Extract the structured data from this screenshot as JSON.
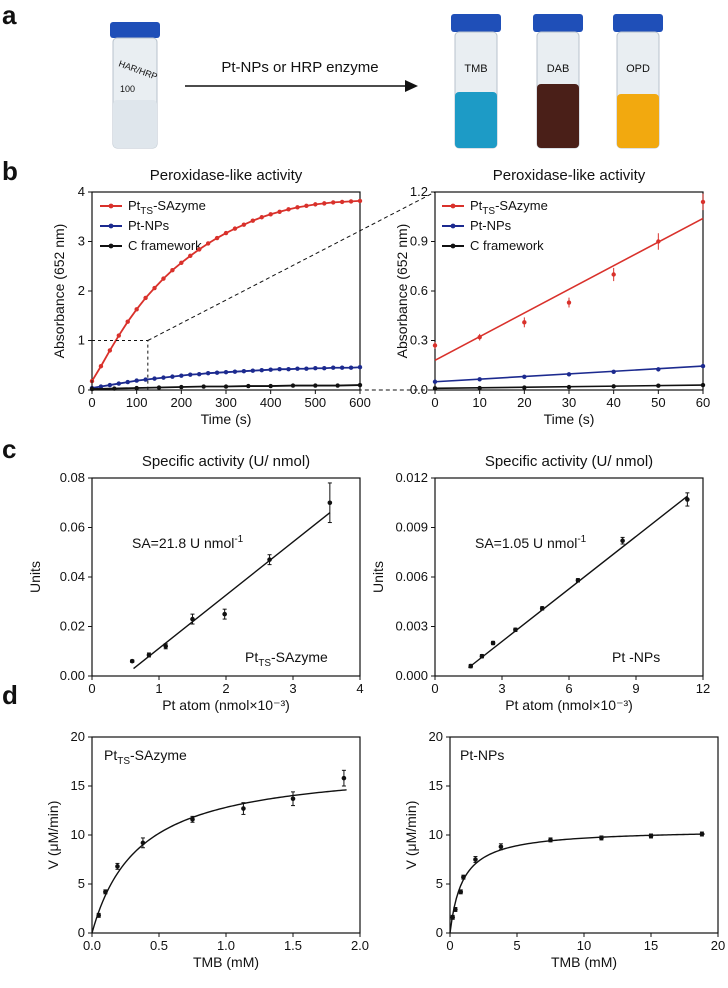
{
  "panel_a": {
    "letter": "a",
    "arrow_label": "Pt-NPs or HRP enzyme",
    "left_vial_marks": [
      "HAR/HRP",
      "100"
    ],
    "right_vial_labels": [
      "TMB",
      "DAB",
      "OPD"
    ],
    "vial_colors": {
      "clear": "#e9eef2",
      "tmb": "#1d9bc6",
      "dab": "#4a1f18",
      "opd": "#f2a90f",
      "cap": "#1f4fb8"
    }
  },
  "panel_b": {
    "letter": "b"
  },
  "panel_c": {
    "letter": "c"
  },
  "panel_d": {
    "letter": "d"
  },
  "colors": {
    "red": "#d9312b",
    "blue": "#1c2a8f",
    "black": "#111111"
  },
  "chart_data": [
    {
      "id": "b_left",
      "type": "line",
      "title": "Peroxidase-like  activity",
      "xlabel": "Time (s)",
      "ylabel": "Absorbance (652 nm)",
      "xlim": [
        0,
        600
      ],
      "ylim": [
        0,
        4
      ],
      "xticks": [
        0,
        100,
        200,
        300,
        400,
        500,
        600
      ],
      "yticks": [
        0,
        1,
        2,
        3,
        4
      ],
      "legend": [
        {
          "main": "Pt",
          "sub": "TS",
          "rest": "-SAzyme",
          "color": "#d9312b"
        },
        {
          "main": "Pt-NPs",
          "sub": "",
          "rest": "",
          "color": "#1c2a8f"
        },
        {
          "main": "C framework",
          "sub": "",
          "rest": "",
          "color": "#111111"
        }
      ],
      "series": [
        {
          "name": "PtTS-SAzyme",
          "color": "#d9312b",
          "x": [
            0,
            20,
            40,
            60,
            80,
            100,
            120,
            140,
            160,
            180,
            200,
            220,
            240,
            260,
            280,
            300,
            320,
            340,
            360,
            380,
            400,
            420,
            440,
            460,
            480,
            500,
            520,
            540,
            560,
            580,
            600
          ],
          "y": [
            0.18,
            0.48,
            0.8,
            1.1,
            1.38,
            1.63,
            1.86,
            2.06,
            2.25,
            2.42,
            2.57,
            2.71,
            2.84,
            2.96,
            3.07,
            3.17,
            3.26,
            3.34,
            3.42,
            3.49,
            3.55,
            3.6,
            3.65,
            3.69,
            3.72,
            3.75,
            3.77,
            3.79,
            3.8,
            3.81,
            3.82
          ]
        },
        {
          "name": "Pt-NPs",
          "color": "#1c2a8f",
          "x": [
            0,
            20,
            40,
            60,
            80,
            100,
            120,
            140,
            160,
            180,
            200,
            220,
            240,
            260,
            280,
            300,
            320,
            340,
            360,
            380,
            400,
            420,
            440,
            460,
            480,
            500,
            520,
            540,
            560,
            580,
            600
          ],
          "y": [
            0.04,
            0.07,
            0.1,
            0.13,
            0.16,
            0.19,
            0.21,
            0.23,
            0.25,
            0.27,
            0.29,
            0.31,
            0.32,
            0.34,
            0.35,
            0.36,
            0.37,
            0.38,
            0.39,
            0.4,
            0.41,
            0.42,
            0.42,
            0.43,
            0.43,
            0.44,
            0.44,
            0.45,
            0.45,
            0.45,
            0.46
          ]
        },
        {
          "name": "C framework",
          "color": "#111111",
          "x": [
            0,
            50,
            100,
            150,
            200,
            250,
            300,
            350,
            400,
            450,
            500,
            550,
            600
          ],
          "y": [
            0.02,
            0.03,
            0.04,
            0.05,
            0.06,
            0.07,
            0.07,
            0.08,
            0.08,
            0.09,
            0.09,
            0.09,
            0.1
          ]
        }
      ],
      "inset_box": {
        "x": [
          0,
          125
        ],
        "y": [
          0,
          1
        ]
      }
    },
    {
      "id": "b_right",
      "type": "line",
      "title": "Peroxidase-like  activity",
      "xlabel": "Time (s)",
      "ylabel": "Absorbance (652 nm)",
      "xlim": [
        0,
        60
      ],
      "ylim": [
        0,
        1.2
      ],
      "xticks": [
        0,
        10,
        20,
        30,
        40,
        50,
        60
      ],
      "yticks": [
        0.0,
        0.3,
        0.6,
        0.9,
        1.2
      ],
      "ytick_labels": [
        "0.0",
        "0.3",
        "0.6",
        "0.9",
        "1.2"
      ],
      "legend": [
        {
          "main": "Pt",
          "sub": "TS",
          "rest": "-SAzyme",
          "color": "#d9312b"
        },
        {
          "main": "Pt-NPs",
          "sub": "",
          "rest": "",
          "color": "#1c2a8f"
        },
        {
          "main": "C framework",
          "sub": "",
          "rest": "",
          "color": "#111111"
        }
      ],
      "series": [
        {
          "name": "PtTS-SAzyme",
          "color": "#d9312b",
          "x": [
            0,
            10,
            20,
            30,
            40,
            50,
            60
          ],
          "y": [
            0.27,
            0.32,
            0.41,
            0.53,
            0.7,
            0.9,
            1.14
          ],
          "err": [
            0.02,
            0.02,
            0.03,
            0.03,
            0.04,
            0.05,
            0.05
          ],
          "fit": [
            [
              0,
              0.18
            ],
            [
              60,
              1.04
            ]
          ]
        },
        {
          "name": "Pt-NPs",
          "color": "#1c2a8f",
          "x": [
            0,
            10,
            20,
            30,
            40,
            50,
            60
          ],
          "y": [
            0.05,
            0.065,
            0.08,
            0.095,
            0.11,
            0.125,
            0.145
          ],
          "fit": [
            [
              0,
              0.05
            ],
            [
              60,
              0.145
            ]
          ]
        },
        {
          "name": "C framework",
          "color": "#111111",
          "x": [
            0,
            10,
            20,
            30,
            40,
            50,
            60
          ],
          "y": [
            0.01,
            0.012,
            0.015,
            0.018,
            0.022,
            0.026,
            0.03
          ],
          "fit": [
            [
              0,
              0.01
            ],
            [
              60,
              0.03
            ]
          ]
        }
      ]
    },
    {
      "id": "c_left",
      "type": "scatter",
      "title": "Specific activity (U/ nmol)",
      "xlabel": "Pt atom (nmol×10⁻³)",
      "ylabel": "Units",
      "xlim": [
        0,
        4
      ],
      "ylim": [
        0,
        0.08
      ],
      "xticks": [
        0,
        1,
        2,
        3,
        4
      ],
      "yticks": [
        0.0,
        0.02,
        0.04,
        0.06,
        0.08
      ],
      "ytick_labels": [
        "0.00",
        "0.02",
        "0.04",
        "0.06",
        "0.08"
      ],
      "annotation": {
        "main": "SA=21.8 U nmol",
        "sup": "-1"
      },
      "label": {
        "main": "Pt",
        "sub": "TS",
        "rest": "-SAzyme"
      },
      "x": [
        0.6,
        0.85,
        1.1,
        1.5,
        1.98,
        2.65,
        3.55
      ],
      "y": [
        0.006,
        0.0085,
        0.012,
        0.023,
        0.025,
        0.047,
        0.07
      ],
      "err": [
        0.0005,
        0.0008,
        0.001,
        0.002,
        0.002,
        0.002,
        0.008
      ],
      "fit": [
        [
          0.62,
          0.003
        ],
        [
          3.55,
          0.066
        ]
      ]
    },
    {
      "id": "c_right",
      "type": "scatter",
      "title": "Specific activity (U/ nmol)",
      "xlabel": "Pt atom (nmol×10⁻³)",
      "ylabel": "Units",
      "xlim": [
        0,
        12
      ],
      "ylim": [
        0,
        0.012
      ],
      "xticks": [
        0,
        3,
        6,
        9,
        12
      ],
      "yticks": [
        0,
        0.003,
        0.006,
        0.009,
        0.012
      ],
      "ytick_labels": [
        "0.000",
        "0.003",
        "0.006",
        "0.009",
        "0.012"
      ],
      "annotation": {
        "main": "SA=1.05 U nmol",
        "sup": "-1"
      },
      "label": {
        "main": "Pt -NPs",
        "sub": "",
        "rest": ""
      },
      "x": [
        1.6,
        2.1,
        2.6,
        3.6,
        4.8,
        6.4,
        8.4,
        11.3
      ],
      "y": [
        0.0006,
        0.0012,
        0.002,
        0.0028,
        0.0041,
        0.0058,
        0.0082,
        0.0107
      ],
      "err": [
        0.0001,
        0.0001,
        0.0001,
        0.0001,
        0.0001,
        0.0001,
        0.0002,
        0.0004
      ],
      "fit": [
        [
          1.5,
          0.0005
        ],
        [
          11.3,
          0.0109
        ]
      ]
    },
    {
      "id": "d_left",
      "type": "scatter",
      "title": "",
      "xlabel": "TMB (mM)",
      "ylabel": "V (μM/min)",
      "xlim": [
        0,
        2.0
      ],
      "ylim": [
        0,
        20
      ],
      "xticks": [
        0.0,
        0.5,
        1.0,
        1.5,
        2.0
      ],
      "xtick_labels": [
        "0.0",
        "0.5",
        "1.0",
        "1.5",
        "2.0"
      ],
      "yticks": [
        0,
        5,
        10,
        15,
        20
      ],
      "label": {
        "main": "Pt",
        "sub": "TS",
        "rest": "-SAzyme"
      },
      "x": [
        0.05,
        0.1,
        0.19,
        0.38,
        0.75,
        1.13,
        1.5,
        1.88
      ],
      "y": [
        1.8,
        4.2,
        6.8,
        9.2,
        11.6,
        12.7,
        13.7,
        15.8
      ],
      "err": [
        0.2,
        0.2,
        0.3,
        0.5,
        0.3,
        0.6,
        0.7,
        0.8
      ],
      "mm_fit": {
        "vmax": 17.3,
        "km": 0.35
      }
    },
    {
      "id": "d_right",
      "type": "scatter",
      "title": "",
      "xlabel": "TMB (mM)",
      "ylabel": "V (μM/min)",
      "xlim": [
        0,
        20
      ],
      "ylim": [
        0,
        20
      ],
      "xticks": [
        0,
        5,
        10,
        15,
        20
      ],
      "yticks": [
        0,
        5,
        10,
        15,
        20
      ],
      "label": {
        "main": "Pt-NPs",
        "sub": "",
        "rest": ""
      },
      "x": [
        0.2,
        0.4,
        0.8,
        1.0,
        1.9,
        3.8,
        7.5,
        11.3,
        15.0,
        18.8
      ],
      "y": [
        1.6,
        2.4,
        4.2,
        5.7,
        7.5,
        8.8,
        9.5,
        9.7,
        9.9,
        10.1
      ],
      "err": [
        0.2,
        0.2,
        0.2,
        0.2,
        0.3,
        0.3,
        0.2,
        0.2,
        0.2,
        0.2
      ],
      "mm_fit": {
        "vmax": 10.6,
        "km": 0.95
      }
    }
  ]
}
